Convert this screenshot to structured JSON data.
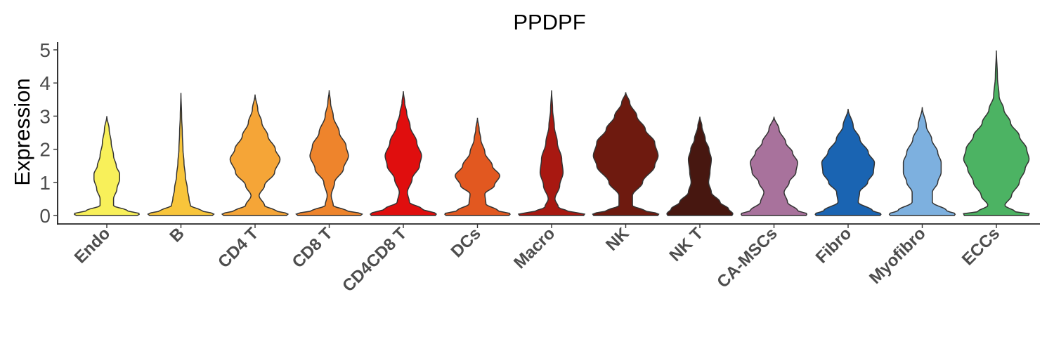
{
  "chart_data": {
    "type": "violin",
    "title": "PPDPF",
    "xlabel": "",
    "ylabel": "Expression",
    "ylim": [
      0,
      5
    ],
    "yticks": [
      "0",
      "1",
      "2",
      "3",
      "4",
      "5"
    ],
    "grid": false,
    "legend": "none",
    "categories": [
      "Endo",
      "B",
      "CD4 T",
      "CD8 T",
      "CD4CD8 T",
      "DCs",
      "Macro",
      "NK",
      "NK T",
      "CA-MSCs",
      "Fibro",
      "Myofibro",
      "ECCs"
    ],
    "series": [
      {
        "category": "Endo",
        "color": "#F8F05A",
        "max": 3.0,
        "profile": [
          [
            0,
            0.9
          ],
          [
            0.05,
            0.98
          ],
          [
            0.15,
            0.6
          ],
          [
            0.3,
            0.2
          ],
          [
            0.5,
            0.2
          ],
          [
            0.8,
            0.3
          ],
          [
            1.1,
            0.38
          ],
          [
            1.25,
            0.38
          ],
          [
            1.5,
            0.28
          ],
          [
            1.8,
            0.2
          ],
          [
            2.2,
            0.13
          ],
          [
            2.6,
            0.07
          ],
          [
            3.0,
            0.0
          ]
        ]
      },
      {
        "category": "B",
        "color": "#F8C53B",
        "max": 3.7,
        "profile": [
          [
            0,
            0.93
          ],
          [
            0.05,
            0.98
          ],
          [
            0.15,
            0.6
          ],
          [
            0.3,
            0.28
          ],
          [
            0.5,
            0.24
          ],
          [
            0.8,
            0.19
          ],
          [
            1.2,
            0.13
          ],
          [
            1.6,
            0.09
          ],
          [
            2.0,
            0.06
          ],
          [
            2.5,
            0.04
          ],
          [
            3.0,
            0.02
          ],
          [
            3.7,
            0.0
          ]
        ]
      },
      {
        "category": "CD4 T",
        "color": "#F5A537",
        "max": 3.65,
        "profile": [
          [
            0,
            0.93
          ],
          [
            0.05,
            0.98
          ],
          [
            0.15,
            0.6
          ],
          [
            0.3,
            0.28
          ],
          [
            0.6,
            0.12
          ],
          [
            0.9,
            0.28
          ],
          [
            1.3,
            0.58
          ],
          [
            1.7,
            0.74
          ],
          [
            2.0,
            0.6
          ],
          [
            2.4,
            0.38
          ],
          [
            2.8,
            0.2
          ],
          [
            3.2,
            0.08
          ],
          [
            3.65,
            0.0
          ]
        ]
      },
      {
        "category": "CD8 T",
        "color": "#EE842C",
        "max": 3.78,
        "profile": [
          [
            0,
            0.93
          ],
          [
            0.05,
            0.98
          ],
          [
            0.15,
            0.5
          ],
          [
            0.3,
            0.12
          ],
          [
            0.6,
            0.06
          ],
          [
            1.0,
            0.16
          ],
          [
            1.4,
            0.42
          ],
          [
            1.8,
            0.57
          ],
          [
            2.1,
            0.5
          ],
          [
            2.5,
            0.3
          ],
          [
            3.0,
            0.12
          ],
          [
            3.4,
            0.04
          ],
          [
            3.78,
            0.0
          ]
        ]
      },
      {
        "category": "CD4CD8 T",
        "color": "#E00E0E",
        "max": 3.75,
        "profile": [
          [
            0,
            0.95
          ],
          [
            0.05,
            0.98
          ],
          [
            0.2,
            0.55
          ],
          [
            0.4,
            0.18
          ],
          [
            0.7,
            0.12
          ],
          [
            1.1,
            0.26
          ],
          [
            1.5,
            0.48
          ],
          [
            1.8,
            0.54
          ],
          [
            2.2,
            0.4
          ],
          [
            2.7,
            0.2
          ],
          [
            3.1,
            0.1
          ],
          [
            3.4,
            0.04
          ],
          [
            3.75,
            0.0
          ]
        ]
      },
      {
        "category": "DCs",
        "color": "#E25820",
        "max": 2.95,
        "profile": [
          [
            0,
            0.93
          ],
          [
            0.05,
            0.98
          ],
          [
            0.15,
            0.6
          ],
          [
            0.35,
            0.25
          ],
          [
            0.65,
            0.22
          ],
          [
            0.9,
            0.5
          ],
          [
            1.2,
            0.66
          ],
          [
            1.5,
            0.44
          ],
          [
            1.9,
            0.22
          ],
          [
            2.3,
            0.1
          ],
          [
            2.6,
            0.05
          ],
          [
            2.95,
            0.0
          ]
        ]
      },
      {
        "category": "Macro",
        "color": "#A81811",
        "max": 3.78,
        "profile": [
          [
            0,
            0.95
          ],
          [
            0.05,
            0.98
          ],
          [
            0.12,
            0.5
          ],
          [
            0.25,
            0.2
          ],
          [
            0.5,
            0.1
          ],
          [
            0.9,
            0.24
          ],
          [
            1.3,
            0.34
          ],
          [
            1.7,
            0.3
          ],
          [
            2.2,
            0.17
          ],
          [
            2.7,
            0.08
          ],
          [
            3.2,
            0.03
          ],
          [
            3.78,
            0.0
          ]
        ]
      },
      {
        "category": "NK",
        "color": "#6E1A0F",
        "max": 3.72,
        "profile": [
          [
            0,
            0.95
          ],
          [
            0.05,
            0.98
          ],
          [
            0.15,
            0.55
          ],
          [
            0.3,
            0.2
          ],
          [
            0.6,
            0.2
          ],
          [
            1.0,
            0.5
          ],
          [
            1.5,
            0.86
          ],
          [
            1.8,
            0.96
          ],
          [
            2.2,
            0.86
          ],
          [
            2.6,
            0.58
          ],
          [
            3.0,
            0.33
          ],
          [
            3.4,
            0.12
          ],
          [
            3.72,
            0.0
          ]
        ]
      },
      {
        "category": "NK T",
        "color": "#471710",
        "max": 2.98,
        "profile": [
          [
            0,
            0.95
          ],
          [
            0.05,
            0.98
          ],
          [
            0.2,
            0.85
          ],
          [
            0.4,
            0.6
          ],
          [
            0.7,
            0.34
          ],
          [
            1.0,
            0.26
          ],
          [
            1.3,
            0.3
          ],
          [
            1.7,
            0.34
          ],
          [
            2.0,
            0.27
          ],
          [
            2.3,
            0.16
          ],
          [
            2.7,
            0.06
          ],
          [
            2.98,
            0.0
          ]
        ]
      },
      {
        "category": "CA-MSCs",
        "color": "#A8729C",
        "max": 2.98,
        "profile": [
          [
            0,
            0.95
          ],
          [
            0.05,
            0.98
          ],
          [
            0.15,
            0.7
          ],
          [
            0.4,
            0.4
          ],
          [
            0.7,
            0.3
          ],
          [
            1.0,
            0.45
          ],
          [
            1.3,
            0.65
          ],
          [
            1.6,
            0.7
          ],
          [
            1.9,
            0.55
          ],
          [
            2.2,
            0.35
          ],
          [
            2.6,
            0.15
          ],
          [
            2.98,
            0.0
          ]
        ]
      },
      {
        "category": "Fibro",
        "color": "#1A64B2",
        "max": 3.22,
        "profile": [
          [
            0,
            0.95
          ],
          [
            0.05,
            0.98
          ],
          [
            0.15,
            0.72
          ],
          [
            0.4,
            0.3
          ],
          [
            0.7,
            0.34
          ],
          [
            1.0,
            0.58
          ],
          [
            1.3,
            0.75
          ],
          [
            1.6,
            0.78
          ],
          [
            1.9,
            0.6
          ],
          [
            2.3,
            0.35
          ],
          [
            2.7,
            0.15
          ],
          [
            3.22,
            0.0
          ]
        ]
      },
      {
        "category": "Myofibro",
        "color": "#7DB0DF",
        "max": 3.27,
        "profile": [
          [
            0,
            0.95
          ],
          [
            0.05,
            0.98
          ],
          [
            0.15,
            0.72
          ],
          [
            0.4,
            0.3
          ],
          [
            0.7,
            0.3
          ],
          [
            1.0,
            0.46
          ],
          [
            1.3,
            0.56
          ],
          [
            1.6,
            0.56
          ],
          [
            1.9,
            0.46
          ],
          [
            2.3,
            0.28
          ],
          [
            2.7,
            0.12
          ],
          [
            3.27,
            0.0
          ]
        ]
      },
      {
        "category": "ECCs",
        "color": "#4CB363",
        "max": 4.98,
        "profile": [
          [
            0,
            0.95
          ],
          [
            0.05,
            0.98
          ],
          [
            0.12,
            0.55
          ],
          [
            0.3,
            0.25
          ],
          [
            0.6,
            0.45
          ],
          [
            1.0,
            0.68
          ],
          [
            1.4,
            0.85
          ],
          [
            1.7,
            0.97
          ],
          [
            2.0,
            0.9
          ],
          [
            2.4,
            0.68
          ],
          [
            2.8,
            0.42
          ],
          [
            3.2,
            0.22
          ],
          [
            3.6,
            0.08
          ],
          [
            4.2,
            0.03
          ],
          [
            4.98,
            0.0
          ]
        ]
      }
    ]
  }
}
